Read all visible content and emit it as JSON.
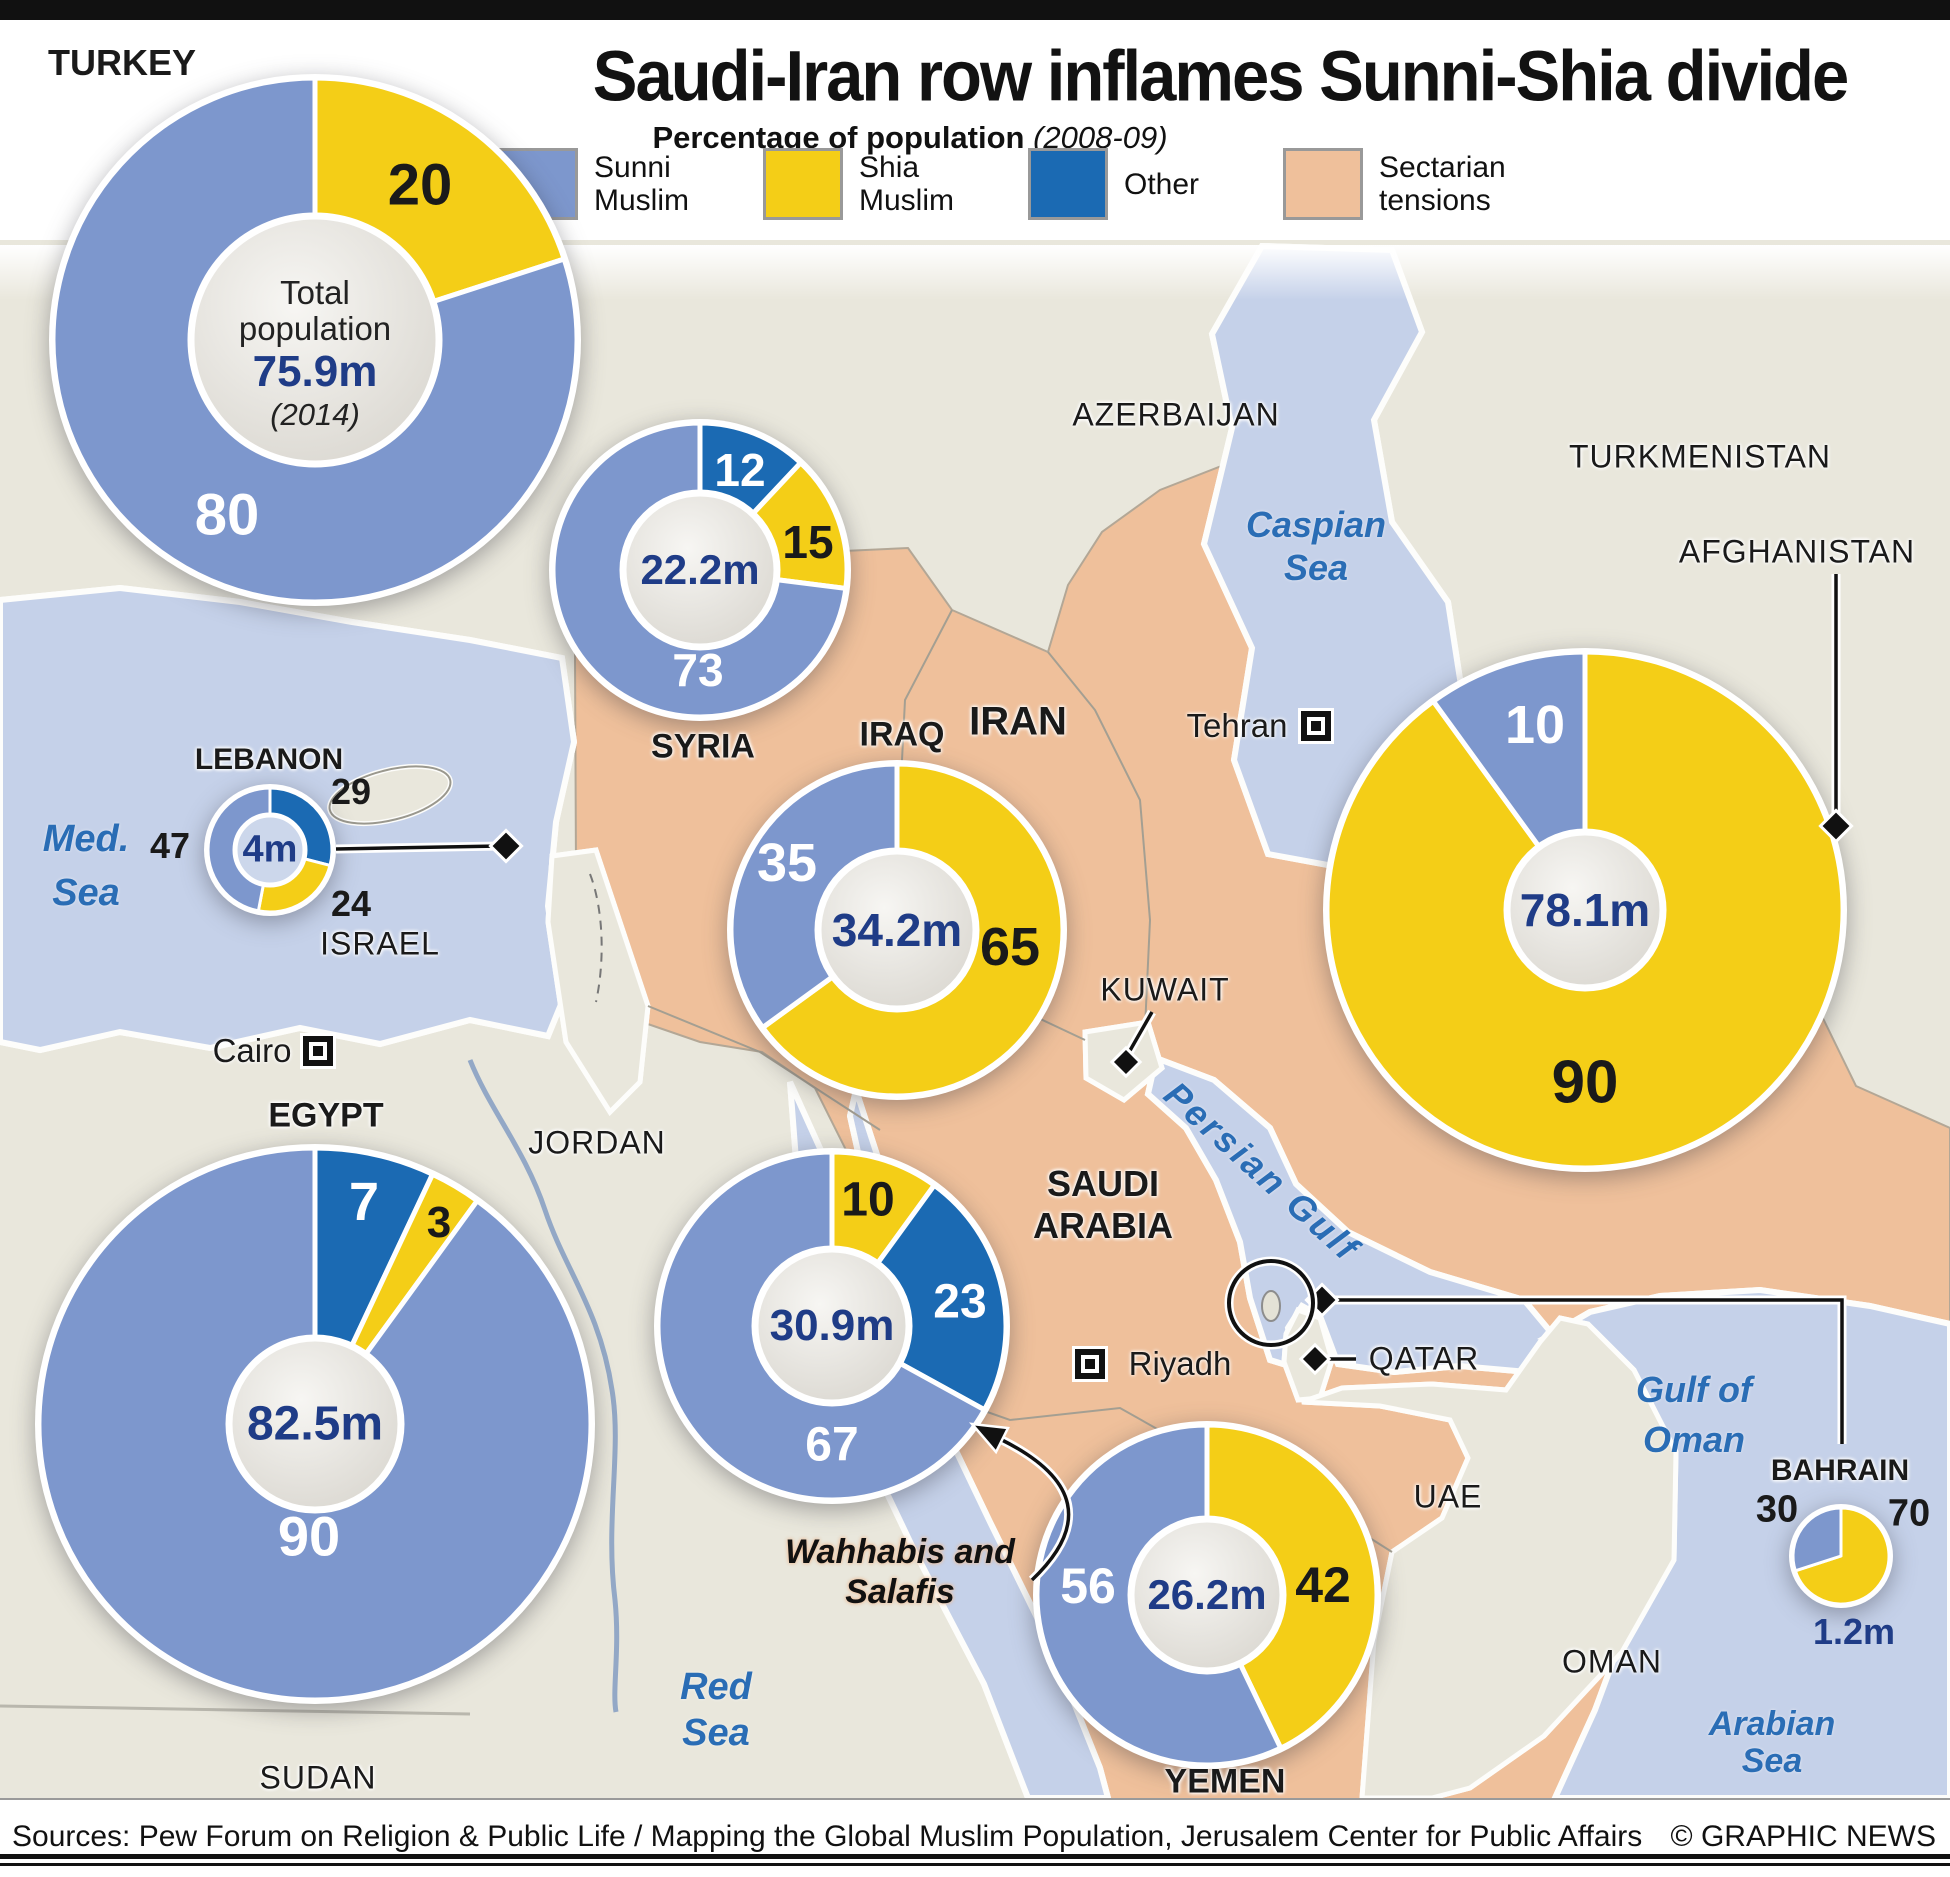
{
  "header": {
    "title": "Saudi-Iran row inflames Sunni-Shia divide",
    "subtitle": "Percentage of population",
    "subtitle_note": "(2008-09)",
    "legend": [
      {
        "id": "sunni",
        "label": "Sunni Muslim",
        "color": "#7d97cd"
      },
      {
        "id": "shia",
        "label": "Shia Muslim",
        "color": "#f4ce17"
      },
      {
        "id": "other",
        "label": "Other",
        "color": "#1b6ab3"
      },
      {
        "id": "tensions",
        "label": "Sectarian tensions",
        "color": "#efc09b"
      }
    ]
  },
  "colors": {
    "sunni": "#7d97cd",
    "shia": "#f4ce17",
    "other": "#1b6ab3",
    "tensions": "#efc09b",
    "sea": "#c5d1e9",
    "land": "#e9e7dc",
    "navy": "#1f3c87",
    "sea_label": "#2a6db5"
  },
  "charts": [
    {
      "id": "turkey",
      "country": "TURKEY",
      "population": "75.9m",
      "center_prefix": "Total population",
      "center_note": "(2014)",
      "slices": [
        {
          "group": "shia",
          "value": 20
        },
        {
          "group": "sunni",
          "value": 80
        }
      ]
    },
    {
      "id": "syria",
      "country": "SYRIA",
      "population": "22.2m",
      "slices": [
        {
          "group": "other",
          "value": 12
        },
        {
          "group": "shia",
          "value": 15
        },
        {
          "group": "sunni",
          "value": 73
        }
      ]
    },
    {
      "id": "lebanon",
      "country": "LEBANON",
      "population": "4m",
      "slices": [
        {
          "group": "other",
          "value": 29
        },
        {
          "group": "shia",
          "value": 24
        },
        {
          "group": "sunni",
          "value": 47
        }
      ]
    },
    {
      "id": "iraq",
      "country": "IRAQ",
      "population": "34.2m",
      "slices": [
        {
          "group": "shia",
          "value": 65
        },
        {
          "group": "sunni",
          "value": 35
        }
      ]
    },
    {
      "id": "iran",
      "country": "IRAN",
      "population": "78.1m",
      "slices": [
        {
          "group": "shia",
          "value": 90
        },
        {
          "group": "sunni",
          "value": 10
        }
      ]
    },
    {
      "id": "egypt",
      "country": "EGYPT",
      "population": "82.5m",
      "slices": [
        {
          "group": "other",
          "value": 7
        },
        {
          "group": "shia",
          "value": 3
        },
        {
          "group": "sunni",
          "value": 90
        }
      ]
    },
    {
      "id": "saudi",
      "country": "SAUDI ARABIA",
      "population": "30.9m",
      "annotation": "Wahhabis and Salafis",
      "slices": [
        {
          "group": "shia",
          "value": 10
        },
        {
          "group": "other",
          "value": 23
        },
        {
          "group": "sunni",
          "value": 67
        }
      ]
    },
    {
      "id": "yemen",
      "country": "YEMEN",
      "population": "26.2m",
      "slices": [
        {
          "group": "shia",
          "value": 42
        },
        {
          "group": "sunni",
          "value": 56
        }
      ]
    },
    {
      "id": "bahrain",
      "country": "BAHRAIN",
      "population": "1.2m",
      "slices": [
        {
          "group": "shia",
          "value": 70
        },
        {
          "group": "sunni",
          "value": 30
        }
      ]
    }
  ],
  "map": {
    "regions": [
      {
        "id": "azerbaijan",
        "label": "AZERBAIJAN"
      },
      {
        "id": "turkmenistan",
        "label": "TURKMENISTAN"
      },
      {
        "id": "afghanistan",
        "label": "AFGHANISTAN"
      },
      {
        "id": "kuwait",
        "label": "KUWAIT"
      },
      {
        "id": "jordan",
        "label": "JORDAN"
      },
      {
        "id": "israel",
        "label": "ISRAEL"
      },
      {
        "id": "qatar",
        "label": "QATAR"
      },
      {
        "id": "uae",
        "label": "UAE"
      },
      {
        "id": "oman",
        "label": "OMAN"
      },
      {
        "id": "sudan",
        "label": "SUDAN"
      }
    ],
    "seas": [
      {
        "id": "med",
        "lines": [
          "Med.",
          "Sea"
        ]
      },
      {
        "id": "caspian",
        "lines": [
          "Caspian",
          "Sea"
        ]
      },
      {
        "id": "persian-gulf",
        "lines": [
          "Persian Gulf"
        ]
      },
      {
        "id": "red-sea",
        "lines": [
          "Red",
          "Sea"
        ]
      },
      {
        "id": "gulf-of-oman",
        "lines": [
          "Gulf of",
          "Oman"
        ]
      },
      {
        "id": "arabian-sea",
        "lines": [
          "Arabian",
          "Sea"
        ]
      }
    ],
    "cities": [
      {
        "id": "tehran",
        "name": "Tehran"
      },
      {
        "id": "cairo",
        "name": "Cairo"
      },
      {
        "id": "riyadh",
        "name": "Riyadh"
      }
    ]
  },
  "chart_data": {
    "type": "pie",
    "title": "Saudi-Iran row inflames Sunni-Shia divide",
    "subtitle": "Percentage of population (2008-09)",
    "legend": [
      "Sunni Muslim",
      "Shia Muslim",
      "Other",
      "Sectarian tensions"
    ],
    "series": [
      {
        "country": "Turkey",
        "total_population": "75.9m (2014)",
        "sunni": 80,
        "shia": 20,
        "other": 0
      },
      {
        "country": "Syria",
        "total_population": "22.2m",
        "sunni": 73,
        "shia": 15,
        "other": 12
      },
      {
        "country": "Lebanon",
        "total_population": "4m",
        "sunni": 47,
        "shia": 24,
        "other": 29
      },
      {
        "country": "Iraq",
        "total_population": "34.2m",
        "sunni": 35,
        "shia": 65,
        "other": 0
      },
      {
        "country": "Iran",
        "total_population": "78.1m",
        "sunni": 10,
        "shia": 90,
        "other": 0
      },
      {
        "country": "Egypt",
        "total_population": "82.5m",
        "sunni": 90,
        "shia": 3,
        "other": 7
      },
      {
        "country": "Saudi Arabia",
        "total_population": "30.9m",
        "sunni": 67,
        "shia": 10,
        "other": 23,
        "note": "Other = Wahhabis and Salafis"
      },
      {
        "country": "Yemen",
        "total_population": "26.2m",
        "sunni": 56,
        "shia": 42,
        "other": 0
      },
      {
        "country": "Bahrain",
        "total_population": "1.2m",
        "sunni": 30,
        "shia": 70,
        "other": 0
      }
    ]
  },
  "footer": {
    "sources": "Sources: Pew Forum on Religion & Public Life / Mapping the Global Muslim Population, Jerusalem Center for Public Affairs",
    "credit": "© GRAPHIC NEWS"
  }
}
